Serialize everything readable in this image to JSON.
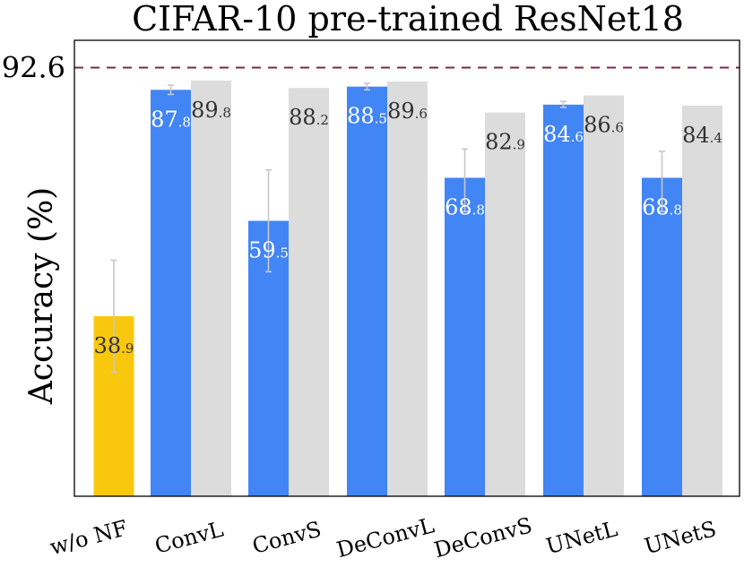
{
  "chart_data": {
    "type": "bar",
    "title": "CIFAR-10 pre-trained ResNet18",
    "ylabel": "Accuracy (%)",
    "xlabel": "",
    "reference_line": {
      "value": 92.6,
      "label": "92.6",
      "color": "#7a2b3a",
      "style": "dashed"
    },
    "ylim": [
      0,
      98.5
    ],
    "colors": {
      "baseline": "#f9c80e",
      "primary": "#4285f4",
      "secondary": "#dcdcdc",
      "errorbar": "#c8c8c8"
    },
    "groups": [
      {
        "category": "w/o NF",
        "bars": [
          {
            "series": "baseline",
            "value": 38.9,
            "int": "38",
            "dec": ".9",
            "err_low": 26.8,
            "err_high": 51.0,
            "label_color": "#333333"
          }
        ]
      },
      {
        "category": "ConvL",
        "bars": [
          {
            "series": "primary",
            "value": 87.8,
            "int": "87",
            "dec": ".8",
            "err_low": 86.8,
            "err_high": 88.8,
            "label_color": "#ffffff"
          },
          {
            "series": "secondary",
            "value": 89.8,
            "int": "89",
            "dec": ".8",
            "label_color": "#333333"
          }
        ]
      },
      {
        "category": "ConvS",
        "bars": [
          {
            "series": "primary",
            "value": 59.5,
            "int": "59",
            "dec": ".5",
            "err_low": 48.5,
            "err_high": 70.5,
            "label_color": "#ffffff"
          },
          {
            "series": "secondary",
            "value": 88.2,
            "int": "88",
            "dec": ".2",
            "label_color": "#333333"
          }
        ]
      },
      {
        "category": "DeConvL",
        "bars": [
          {
            "series": "primary",
            "value": 88.5,
            "int": "88",
            "dec": ".5",
            "err_low": 87.8,
            "err_high": 89.2,
            "label_color": "#ffffff"
          },
          {
            "series": "secondary",
            "value": 89.6,
            "int": "89",
            "dec": ".6",
            "label_color": "#333333"
          }
        ]
      },
      {
        "category": "DeConvS",
        "bars": [
          {
            "series": "primary",
            "value": 68.8,
            "int": "68",
            "dec": ".8",
            "err_low": 61.5,
            "err_high": 75.0,
            "label_color": "#ffffff"
          },
          {
            "series": "secondary",
            "value": 82.9,
            "int": "82",
            "dec": ".9",
            "label_color": "#333333"
          }
        ]
      },
      {
        "category": "UNetL",
        "bars": [
          {
            "series": "primary",
            "value": 84.6,
            "int": "84",
            "dec": ".6",
            "err_low": 84.0,
            "err_high": 85.3,
            "label_color": "#ffffff"
          },
          {
            "series": "secondary",
            "value": 86.6,
            "int": "86",
            "dec": ".6",
            "label_color": "#333333"
          }
        ]
      },
      {
        "category": "UNetS",
        "bars": [
          {
            "series": "primary",
            "value": 68.8,
            "int": "68",
            "dec": ".8",
            "err_low": 61.5,
            "err_high": 74.5,
            "label_color": "#ffffff"
          },
          {
            "series": "secondary",
            "value": 84.4,
            "int": "84",
            "dec": ".4",
            "label_color": "#333333"
          }
        ]
      }
    ]
  }
}
